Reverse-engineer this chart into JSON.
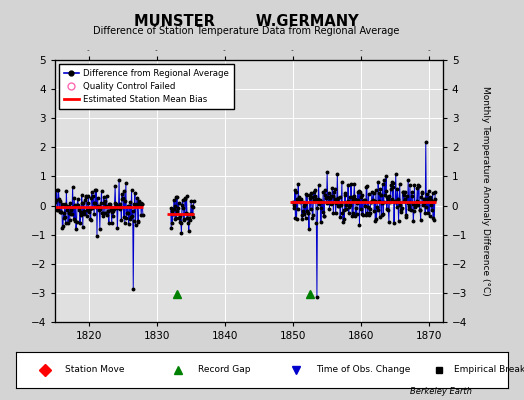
{
  "title1": "MUNSTER        W.GERMANY",
  "title2": "Difference of Station Temperature Data from Regional Average",
  "ylabel": "Monthly Temperature Anomaly Difference (°C)",
  "xlabel_bottom": "Berkeley Earth",
  "ylim": [
    -4,
    5
  ],
  "xlim": [
    1815,
    1872
  ],
  "xticks": [
    1820,
    1830,
    1840,
    1850,
    1860,
    1870
  ],
  "yticks": [
    -4,
    -3,
    -2,
    -1,
    0,
    1,
    2,
    3,
    4,
    5
  ],
  "bg_color": "#d4d4d4",
  "plot_bg_color": "#e0e0e0",
  "grid_color": "#ffffff",
  "line_color": "#0000cc",
  "bias_color": "red",
  "segment1_start": 1815.0,
  "segment1_end": 1828.0,
  "segment1_bias": -0.05,
  "segment2_start": 1831.5,
  "segment2_end": 1835.5,
  "segment2_bias": -0.28,
  "segment3_start": 1849.5,
  "segment3_end": 1871.0,
  "segment3_bias": 0.12,
  "record_gap1_x": 1833.0,
  "record_gap1_y": -3.05,
  "record_gap2_x": 1852.5,
  "record_gap2_y": -3.05,
  "drop1_x": 1826.5,
  "drop1_y": -2.85,
  "drop2_x": 1853.5,
  "drop2_y": -3.15,
  "spike1_x": 1869.5,
  "spike1_y": 2.2,
  "spike2_x": 1855.0,
  "spike2_y": 1.15
}
